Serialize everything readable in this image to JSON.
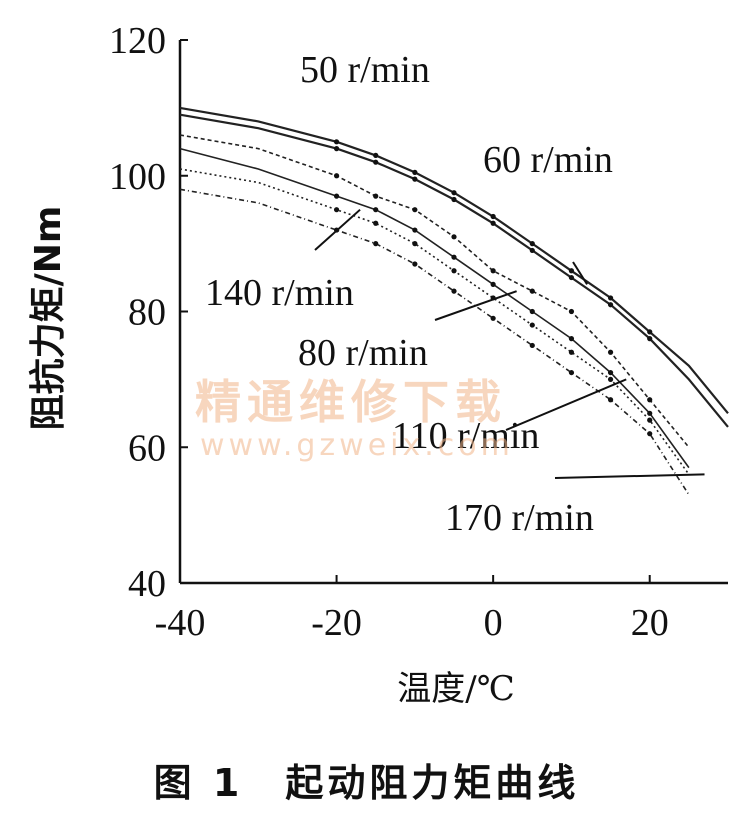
{
  "caption": "图 1　起动阻力矩曲线",
  "watermark": {
    "line1": "精通维修下载",
    "line2": "www.gzweix.com"
  },
  "chart_data": {
    "type": "line",
    "title": "",
    "xlabel": "温度/℃",
    "ylabel": "阻抗力矩/Nm",
    "xlim": [
      -40,
      30
    ],
    "ylim": [
      40,
      120
    ],
    "xticks": [
      -40,
      -20,
      0,
      20
    ],
    "yticks": [
      40,
      60,
      80,
      100,
      120
    ],
    "grid": false,
    "series": [
      {
        "name": "50 r/min",
        "x": [
          -40,
          -30,
          -20,
          -15,
          -10,
          -5,
          0,
          5,
          10,
          15,
          20,
          25,
          30
        ],
        "y": [
          110,
          108,
          105,
          103,
          100.5,
          97.5,
          94,
          90,
          86,
          82,
          77,
          72,
          65
        ]
      },
      {
        "name": "60 r/min",
        "x": [
          -40,
          -30,
          -20,
          -15,
          -10,
          -5,
          0,
          5,
          10,
          15,
          20,
          25,
          30
        ],
        "y": [
          109,
          107,
          104,
          102,
          99.5,
          96.5,
          93,
          89,
          85,
          81,
          76,
          70,
          63
        ]
      },
      {
        "name": "80 r/min",
        "x": [
          -40,
          -30,
          -20,
          -15,
          -10,
          -5,
          0,
          5,
          10,
          15,
          20,
          25
        ],
        "y": [
          106,
          104,
          100,
          97,
          95,
          91,
          86,
          83,
          80,
          74,
          67,
          60
        ]
      },
      {
        "name": "110 r/min",
        "x": [
          -40,
          -30,
          -20,
          -15,
          -10,
          -5,
          0,
          5,
          10,
          15,
          20,
          25
        ],
        "y": [
          104,
          101,
          97,
          95,
          92,
          88,
          84,
          80,
          76,
          71,
          65,
          57
        ]
      },
      {
        "name": "140 r/min",
        "x": [
          -40,
          -30,
          -20,
          -15,
          -10,
          -5,
          0,
          5,
          10,
          15,
          20,
          25
        ],
        "y": [
          101,
          99,
          95,
          93,
          90,
          86,
          82,
          78,
          74,
          70,
          64,
          56
        ]
      },
      {
        "name": "170 r/min",
        "x": [
          -40,
          -30,
          -20,
          -15,
          -10,
          -5,
          0,
          5,
          10,
          15,
          20,
          25
        ],
        "y": [
          98,
          96,
          92,
          90,
          87,
          83,
          79,
          75,
          71,
          67,
          62,
          53
        ]
      }
    ],
    "annotations": [
      {
        "text": "50 r/min",
        "target": [
          -20,
          105
        ]
      },
      {
        "text": "60 r/min",
        "target": [
          12,
          84
        ]
      },
      {
        "text": "140 r/min",
        "target": [
          -17,
          95
        ]
      },
      {
        "text": "80 r/min",
        "target": [
          3,
          83
        ]
      },
      {
        "text": "110 r/min",
        "target": [
          17,
          70
        ]
      },
      {
        "text": "170 r/min",
        "target": [
          27,
          56
        ]
      }
    ]
  }
}
